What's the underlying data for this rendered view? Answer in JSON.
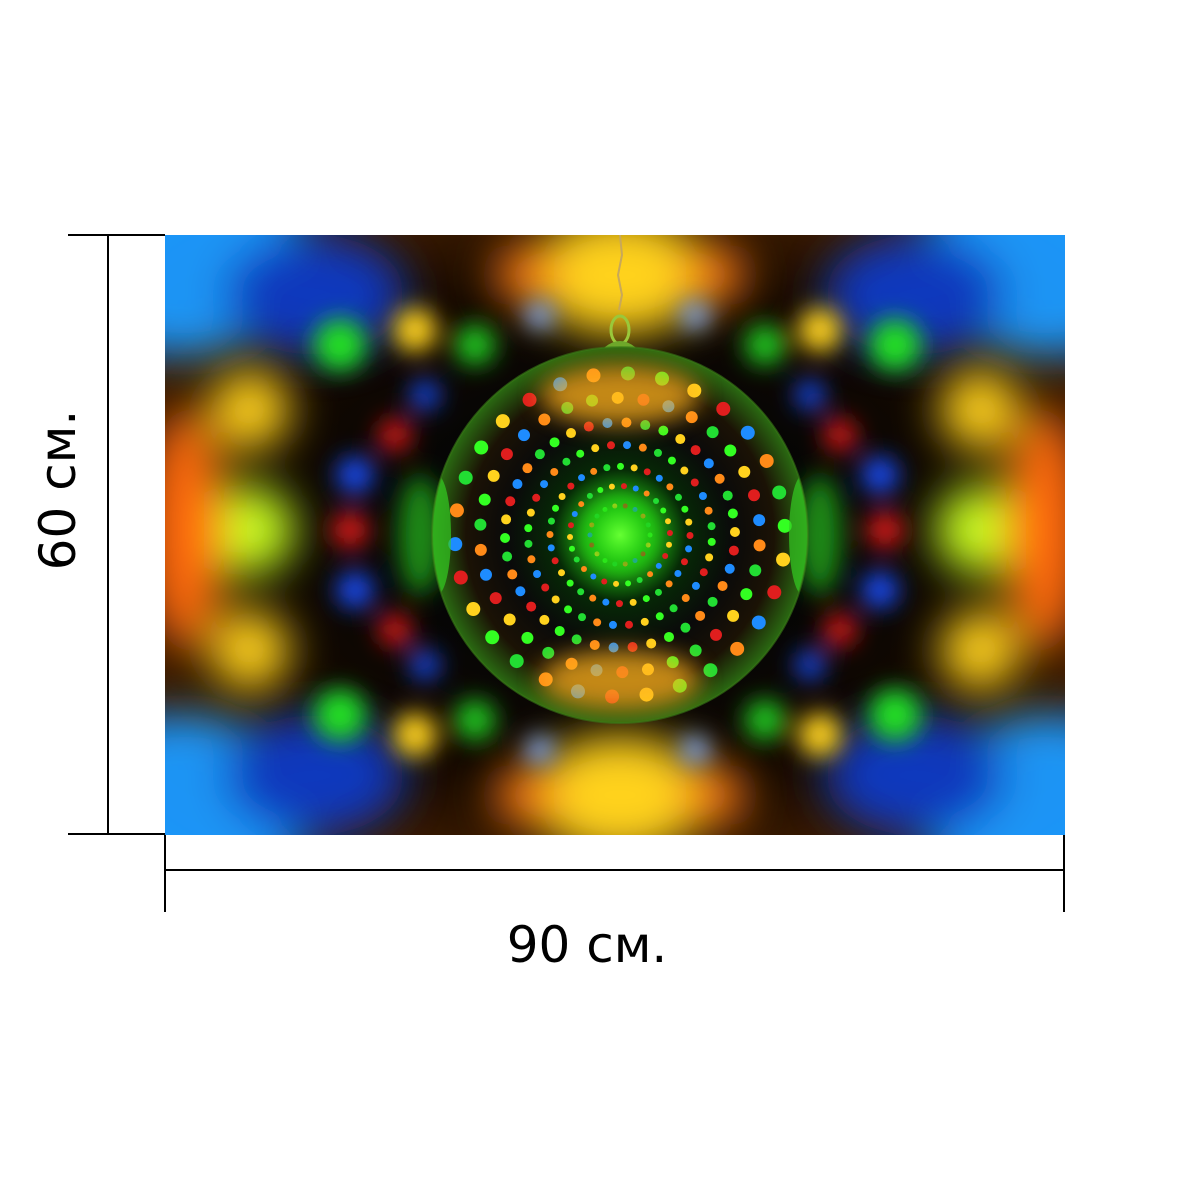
{
  "dimensions": {
    "height_label": "60 см.",
    "width_label": "90 см."
  },
  "artwork": {
    "subject_icon": "christmas-ornament-ball",
    "colors": {
      "center_glow": "#33ff22",
      "background": "#000000",
      "accent_blue": "#0a4ad8",
      "accent_yellow": "#ffd21e",
      "accent_red": "#e01e1e",
      "accent_orange": "#ff7a18",
      "accent_cyan": "#1ec8ff"
    }
  }
}
